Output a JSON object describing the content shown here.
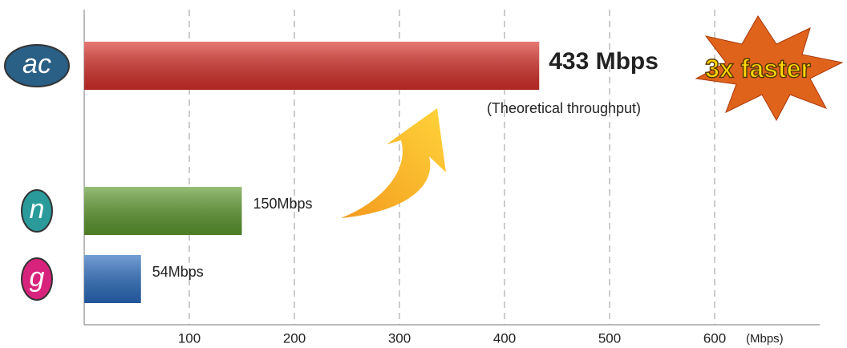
{
  "chart_data": {
    "type": "bar",
    "orientation": "horizontal",
    "categories": [
      "ac",
      "n",
      "g"
    ],
    "values": [
      433,
      150,
      54
    ],
    "value_labels": [
      "433 Mbps",
      "150Mbps",
      "54Mbps"
    ],
    "colors": [
      "#d9302a",
      "#5e9a2e",
      "#2a6cc0"
    ],
    "category_colors": [
      "#2a5f86",
      "#2a9a9a",
      "#d8237c"
    ],
    "xlim": [
      0,
      700
    ],
    "xticks": [
      100,
      200,
      300,
      400,
      500,
      600
    ],
    "x_unit": "(Mbps)",
    "grid": true,
    "annotations": [
      "(Theoretical throughput)",
      "3x faster"
    ]
  }
}
